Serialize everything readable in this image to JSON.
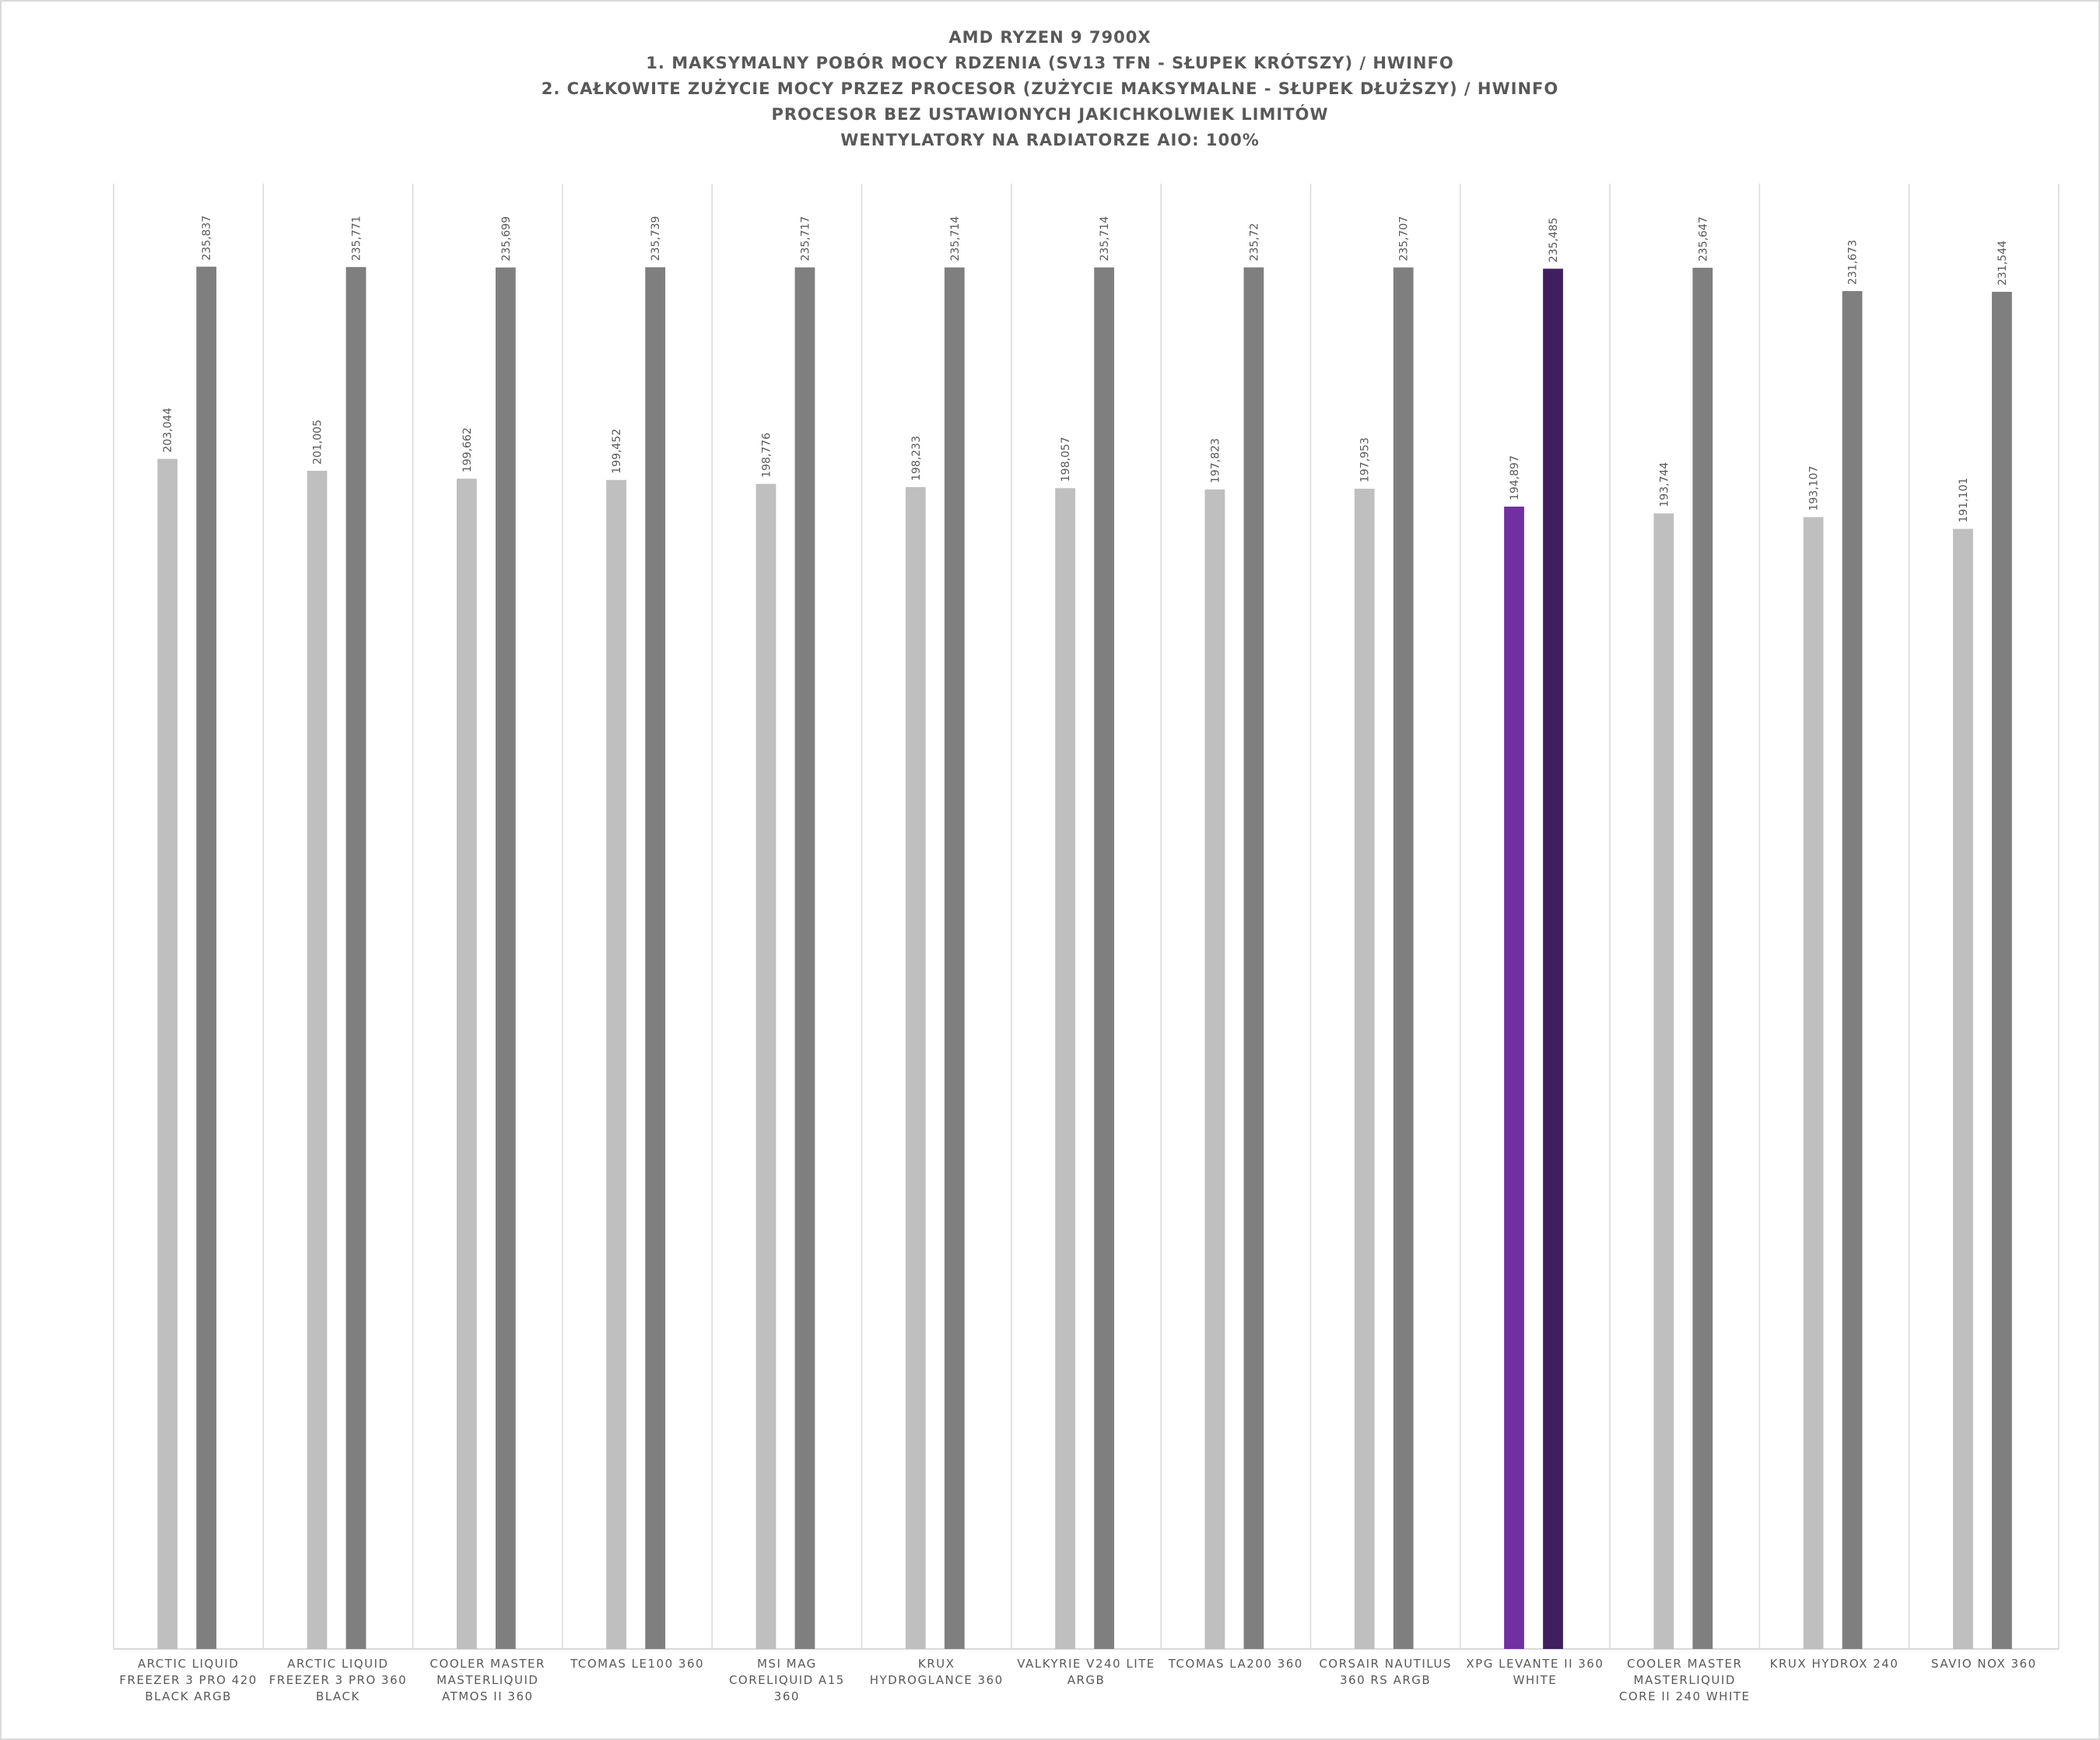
{
  "chart_data": {
    "type": "bar",
    "title": [
      "AMD RYZEN 9 7900X",
      "1. MAKSYMALNY POBÓR MOCY RDZENIA (SV13 TFN  - SŁUPEK KRÓTSZY) / HWINFO",
      "2. CAŁKOWITE ZUŻYCIE MOCY PRZEZ PROCESOR (ZUŻYCIE MAKSYMALNE - SŁUPEK DŁUŻSZY) / HWINFO",
      "PROCESOR BEZ USTAWIONYCH JAKICHKOLWIEK LIMITÓW",
      "WENTYLATORY NA RADIATORZE AIO: 100%"
    ],
    "categories": [
      "ARCTIC LIQUID FREEZER 3 PRO 420 BLACK ARGB",
      "ARCTIC LIQUID FREEZER 3 PRO 360 BLACK",
      "COOLER MASTER MASTERLIQUID ATMOS II 360",
      "TCOMAS LE100 360",
      "MSI MAG CORELIQUID A15 360",
      "KRUX HYDROGLANCE 360",
      "VALKYRIE V240 LITE ARGB",
      "TCOMAS LA200 360",
      "CORSAIR NAUTILUS 360 RS ARGB",
      "XPG LEVANTE II 360 WHITE",
      "COOLER MASTER MASTERLIQUID CORE II 240 WHITE",
      "KRUX HYDROX 240",
      "SAVIO NOX 360"
    ],
    "series": [
      {
        "values": [
          203.044,
          201.005,
          199.662,
          199.452,
          198.776,
          198.233,
          198.057,
          197.823,
          197.953,
          194.897,
          193.744,
          193.107,
          191.101
        ],
        "value_labels": [
          "203,044",
          "201,005",
          "199,662",
          "199,452",
          "198,776",
          "198,233",
          "198,057",
          "197,823",
          "197,953",
          "194,897",
          "193,744",
          "193,107",
          "191,101"
        ],
        "colors": [
          "#bfbfbf",
          "#bfbfbf",
          "#bfbfbf",
          "#bfbfbf",
          "#bfbfbf",
          "#bfbfbf",
          "#bfbfbf",
          "#bfbfbf",
          "#bfbfbf",
          "#7030a0",
          "#bfbfbf",
          "#bfbfbf",
          "#bfbfbf"
        ]
      },
      {
        "values": [
          235.837,
          235.771,
          235.699,
          235.739,
          235.717,
          235.714,
          235.714,
          235.72,
          235.707,
          235.485,
          235.647,
          231.673,
          231.544
        ],
        "value_labels": [
          "235,837",
          "235,771",
          "235,699",
          "235,739",
          "235,717",
          "235,714",
          "235,714",
          "235,72",
          "235,707",
          "235,485",
          "235,647",
          "231,673",
          "231,544"
        ],
        "colors": [
          "#7f7f7f",
          "#7f7f7f",
          "#7f7f7f",
          "#7f7f7f",
          "#7f7f7f",
          "#7f7f7f",
          "#7f7f7f",
          "#7f7f7f",
          "#7f7f7f",
          "#3f1f60",
          "#7f7f7f",
          "#7f7f7f",
          "#7f7f7f"
        ]
      }
    ],
    "ylim": [
      0,
      250
    ]
  }
}
